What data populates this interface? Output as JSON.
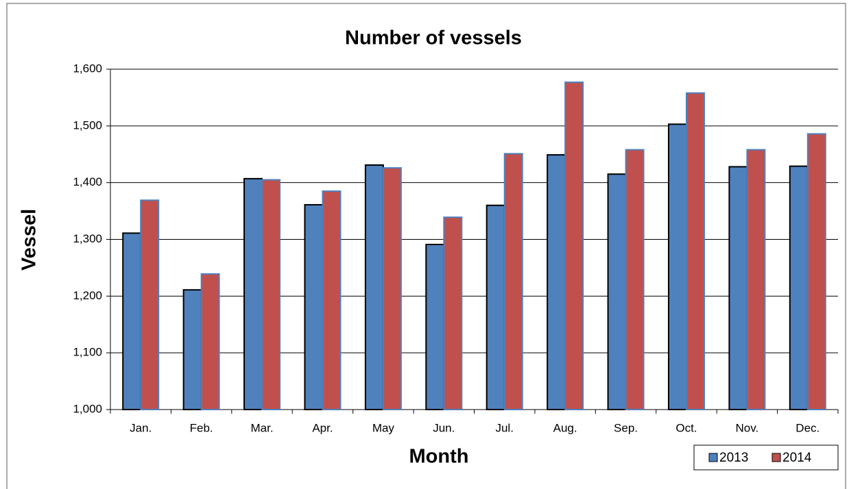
{
  "chart_data": {
    "type": "bar",
    "title": "Number of  vessels",
    "x_label": "Month",
    "y_label": "Vessel",
    "categories": [
      "Jan.",
      "Feb.",
      "Mar.",
      "Apr.",
      "May",
      "Jun.",
      "Jul.",
      "Aug.",
      "Sep.",
      "Oct.",
      "Nov.",
      "Dec."
    ],
    "series": [
      {
        "name": "2013",
        "color": "#4f81bd",
        "values": [
          1311,
          1211,
          1407,
          1361,
          1431,
          1291,
          1360,
          1449,
          1415,
          1503,
          1428,
          1429
        ]
      },
      {
        "name": "2014",
        "color": "#c0504d",
        "values": [
          1369,
          1239,
          1405,
          1385,
          1426,
          1339,
          1451,
          1577,
          1458,
          1558,
          1458,
          1486
        ]
      }
    ],
    "ylim": [
      1000,
      1600
    ],
    "yticks": [
      {
        "value": 1000,
        "label": "1,000"
      },
      {
        "value": 1100,
        "label": "1,100"
      },
      {
        "value": 1200,
        "label": "1,200"
      },
      {
        "value": 1300,
        "label": "1,300"
      },
      {
        "value": 1400,
        "label": "1,400"
      },
      {
        "value": 1500,
        "label": "1,500"
      },
      {
        "value": 1600,
        "label": "1,600"
      }
    ],
    "grid": true,
    "legend": "bottom-right"
  }
}
